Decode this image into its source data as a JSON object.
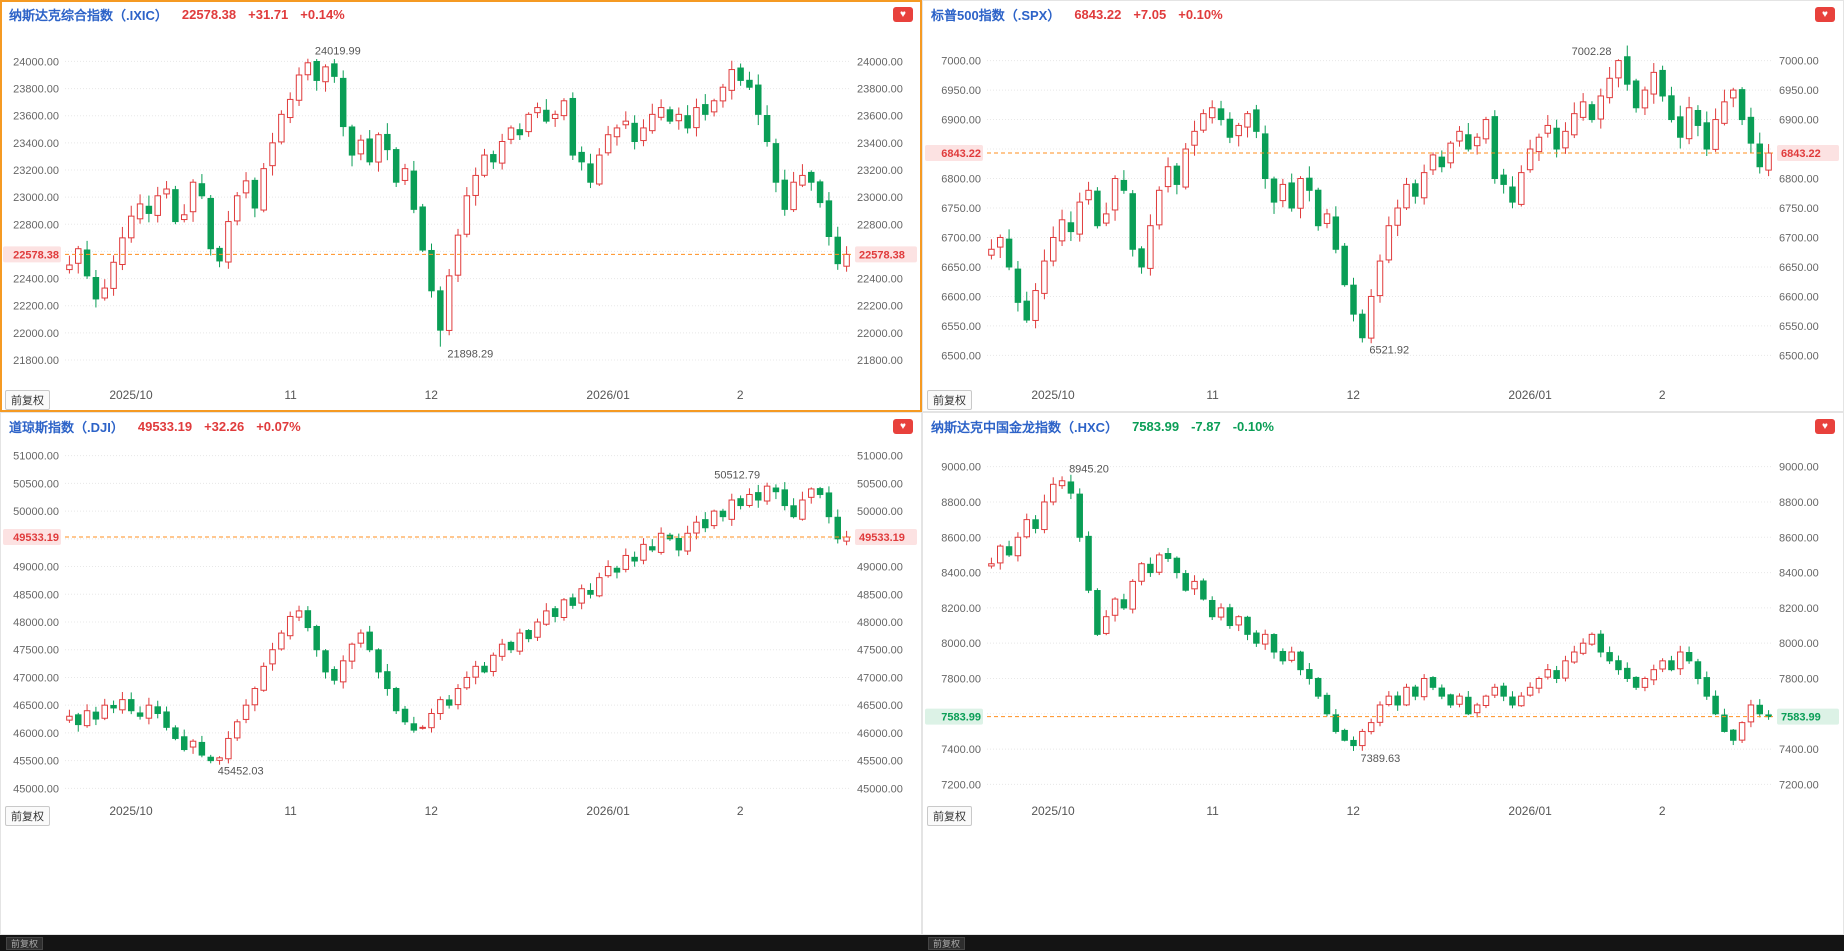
{
  "app": {
    "adjust_label": "前复权"
  },
  "colors": {
    "up": "#e03b3c",
    "down": "#0a9e56",
    "grid": "#e8e8e8",
    "axis_text": "#666666",
    "xlabel_text": "#555555",
    "annotation_text": "#555555",
    "current_line": "#ff8f1f",
    "badge_up_bg": "#fce2e2",
    "badge_down_bg": "#dcf2e6",
    "name_blue": "#2d63c8",
    "selected_border": "#f59a23",
    "favorite_bg": "#e8413c"
  },
  "bottom_bar": {
    "left_label": "前复权",
    "right_label": "前复权"
  },
  "panels": [
    {
      "id": "ixic",
      "selected": true,
      "adjust_label": "前复权",
      "header": {
        "name": "纳斯达克综合指数",
        "code": "（.IXIC）",
        "price": "22578.38",
        "change": "+31.71",
        "change_pct": "+0.14%",
        "direction": "up"
      },
      "chart_data": {
        "type": "candlestick",
        "title": "纳斯达克综合指数 (.IXIC)",
        "ylim": [
          21660,
          24180
        ],
        "wick": 0.003,
        "current": 22578.38,
        "current_label": "22578.38",
        "y_ticks": [
          "24000.00",
          "23800.00",
          "23600.00",
          "23400.00",
          "23200.00",
          "23000.00",
          "22800.00",
          "22600.00",
          "22400.00",
          "22200.00",
          "22000.00",
          "21800.00"
        ],
        "x_labels": [
          {
            "label": "2025/10",
            "pos": 0.084
          },
          {
            "label": "11",
            "pos": 0.287
          },
          {
            "label": "12",
            "pos": 0.466
          },
          {
            "label": "2026/01",
            "pos": 0.691
          },
          {
            "label": "2",
            "pos": 0.859
          }
        ],
        "high_annotation": {
          "label": "24019.99",
          "value": 24019.99,
          "index": 27,
          "side": "right"
        },
        "low_annotation": {
          "label": "21898.29",
          "value": 21898.29,
          "index": 42,
          "side": "right"
        },
        "closes": [
          22500,
          22620,
          22420,
          22250,
          22330,
          22520,
          22700,
          22860,
          22950,
          22880,
          23010,
          23060,
          22820,
          22870,
          23110,
          23010,
          22620,
          22530,
          22820,
          23010,
          23120,
          22920,
          23210,
          23400,
          23610,
          23720,
          23900,
          23990,
          23860,
          23960,
          23890,
          23520,
          23310,
          23420,
          23260,
          23460,
          23350,
          23110,
          23210,
          22910,
          22610,
          22310,
          22020,
          22420,
          22720,
          23010,
          23160,
          23310,
          23260,
          23410,
          23510,
          23460,
          23610,
          23660,
          23560,
          23610,
          23710,
          23310,
          23260,
          23110,
          23310,
          23460,
          23510,
          23560,
          23410,
          23510,
          23610,
          23660,
          23560,
          23610,
          23510,
          23660,
          23610,
          23710,
          23810,
          23940,
          23860,
          23810,
          23610,
          23410,
          23110,
          22910,
          23110,
          23160,
          23110,
          22960,
          22710,
          22510,
          22578.38
        ]
      }
    },
    {
      "id": "spx",
      "selected": false,
      "adjust_label": "前复权",
      "header": {
        "name": "标普500指数",
        "code": "（.SPX）",
        "price": "6843.22",
        "change": "+7.05",
        "change_pct": "+0.10%",
        "direction": "up"
      },
      "chart_data": {
        "type": "candlestick",
        "title": "标普500指数 (.SPX)",
        "ylim": [
          6460,
          7040
        ],
        "wick": 0.0025,
        "current": 6843.22,
        "current_label": "6843.22",
        "y_ticks": [
          "7000.00",
          "6950.00",
          "6900.00",
          "6850.00",
          "6800.00",
          "6750.00",
          "6700.00",
          "6650.00",
          "6600.00",
          "6550.00",
          "6500.00"
        ],
        "x_labels": [
          {
            "label": "2025/10",
            "pos": 0.084
          },
          {
            "label": "11",
            "pos": 0.287
          },
          {
            "label": "12",
            "pos": 0.466
          },
          {
            "label": "2026/01",
            "pos": 0.691
          },
          {
            "label": "2",
            "pos": 0.859
          }
        ],
        "high_annotation": {
          "label": "7002.28",
          "value": 7002.28,
          "index": 71,
          "side": "left"
        },
        "low_annotation": {
          "label": "6521.92",
          "value": 6521.92,
          "index": 42,
          "side": "right"
        },
        "closes": [
          6680,
          6700,
          6650,
          6590,
          6560,
          6610,
          6660,
          6700,
          6730,
          6710,
          6760,
          6780,
          6720,
          6740,
          6800,
          6780,
          6680,
          6650,
          6720,
          6780,
          6820,
          6790,
          6850,
          6880,
          6910,
          6920,
          6900,
          6870,
          6890,
          6910,
          6880,
          6800,
          6760,
          6790,
          6750,
          6800,
          6780,
          6720,
          6740,
          6680,
          6620,
          6570,
          6530,
          6600,
          6660,
          6720,
          6750,
          6790,
          6770,
          6810,
          6840,
          6820,
          6860,
          6880,
          6850,
          6870,
          6900,
          6800,
          6790,
          6760,
          6810,
          6850,
          6870,
          6890,
          6850,
          6880,
          6910,
          6930,
          6900,
          6940,
          6970,
          7000,
          6960,
          6920,
          6950,
          6980,
          6940,
          6900,
          6870,
          6920,
          6890,
          6850,
          6900,
          6930,
          6950,
          6900,
          6860,
          6820,
          6843.22
        ]
      }
    },
    {
      "id": "dji",
      "selected": false,
      "adjust_label": "前复权",
      "header": {
        "name": "道琼斯指数",
        "code": "（.DJI）",
        "price": "49533.19",
        "change": "+32.26",
        "change_pct": "+0.07%",
        "direction": "up"
      },
      "chart_data": {
        "type": "candlestick",
        "title": "道琼斯指数 (.DJI)",
        "ylim": [
          44880,
          51120
        ],
        "wick": 0.0025,
        "current": 49533.19,
        "current_label": "49533.19",
        "y_ticks": [
          "51000.00",
          "50500.00",
          "50000.00",
          "49500.00",
          "49000.00",
          "48500.00",
          "48000.00",
          "47500.00",
          "47000.00",
          "46500.00",
          "46000.00",
          "45500.00",
          "45000.00"
        ],
        "x_labels": [
          {
            "label": "2025/10",
            "pos": 0.084
          },
          {
            "label": "11",
            "pos": 0.287
          },
          {
            "label": "12",
            "pos": 0.466
          },
          {
            "label": "2026/01",
            "pos": 0.691
          },
          {
            "label": "2",
            "pos": 0.859
          }
        ],
        "high_annotation": {
          "label": "50512.79",
          "value": 50512.79,
          "index": 79,
          "side": "left"
        },
        "low_annotation": {
          "label": "45452.03",
          "value": 45452.03,
          "index": 16,
          "side": "right"
        },
        "closes": [
          46300,
          46150,
          46400,
          46250,
          46500,
          46450,
          46600,
          46400,
          46300,
          46500,
          46350,
          46100,
          45900,
          45700,
          45850,
          45600,
          45500,
          45550,
          45900,
          46200,
          46500,
          46800,
          47200,
          47500,
          47800,
          48100,
          48200,
          47900,
          47500,
          47100,
          46950,
          47300,
          47600,
          47800,
          47500,
          47100,
          46800,
          46400,
          46200,
          46050,
          46100,
          46350,
          46600,
          46500,
          46800,
          47000,
          47200,
          47100,
          47400,
          47600,
          47500,
          47800,
          47700,
          48000,
          48200,
          48100,
          48400,
          48300,
          48600,
          48500,
          48800,
          49000,
          48900,
          49200,
          49100,
          49400,
          49300,
          49600,
          49500,
          49300,
          49600,
          49800,
          49700,
          50000,
          49900,
          50200,
          50100,
          50300,
          50200,
          50450,
          50350,
          50100,
          49900,
          50200,
          50400,
          50300,
          49900,
          49500,
          49533.19
        ]
      }
    },
    {
      "id": "hxc",
      "selected": false,
      "adjust_label": "前复权",
      "header": {
        "name": "纳斯达克中国金龙指数",
        "code": "（.HXC）",
        "price": "7583.99",
        "change": "-7.87",
        "change_pct": "-0.10%",
        "direction": "down"
      },
      "chart_data": {
        "type": "candlestick",
        "title": "纳斯达克中国金龙指数 (.HXC)",
        "ylim": [
          7140,
          9100
        ],
        "wick": 0.004,
        "current": 7583.99,
        "current_label": "7583.99",
        "y_ticks": [
          "9000.00",
          "8800.00",
          "8600.00",
          "8400.00",
          "8200.00",
          "8000.00",
          "7800.00",
          "7600.00",
          "7400.00",
          "7200.00"
        ],
        "x_labels": [
          {
            "label": "2025/10",
            "pos": 0.084
          },
          {
            "label": "11",
            "pos": 0.287
          },
          {
            "label": "12",
            "pos": 0.466
          },
          {
            "label": "2026/01",
            "pos": 0.691
          },
          {
            "label": "2",
            "pos": 0.859
          }
        ],
        "high_annotation": {
          "label": "8945.20",
          "value": 8945.2,
          "index": 8,
          "side": "right"
        },
        "low_annotation": {
          "label": "7389.63",
          "value": 7389.63,
          "index": 41,
          "side": "right"
        },
        "closes": [
          8450,
          8550,
          8500,
          8600,
          8700,
          8650,
          8800,
          8900,
          8920,
          8850,
          8600,
          8300,
          8050,
          8150,
          8250,
          8200,
          8350,
          8450,
          8400,
          8500,
          8480,
          8400,
          8300,
          8350,
          8250,
          8150,
          8200,
          8100,
          8150,
          8050,
          8000,
          8050,
          7950,
          7900,
          7950,
          7850,
          7800,
          7700,
          7600,
          7500,
          7450,
          7420,
          7500,
          7550,
          7650,
          7700,
          7650,
          7750,
          7700,
          7800,
          7750,
          7700,
          7650,
          7700,
          7600,
          7650,
          7700,
          7750,
          7700,
          7650,
          7700,
          7750,
          7800,
          7850,
          7800,
          7900,
          7950,
          8000,
          8050,
          7950,
          7900,
          7850,
          7800,
          7750,
          7800,
          7850,
          7900,
          7850,
          7950,
          7900,
          7800,
          7700,
          7600,
          7500,
          7450,
          7550,
          7650,
          7600,
          7583.99
        ]
      }
    }
  ]
}
